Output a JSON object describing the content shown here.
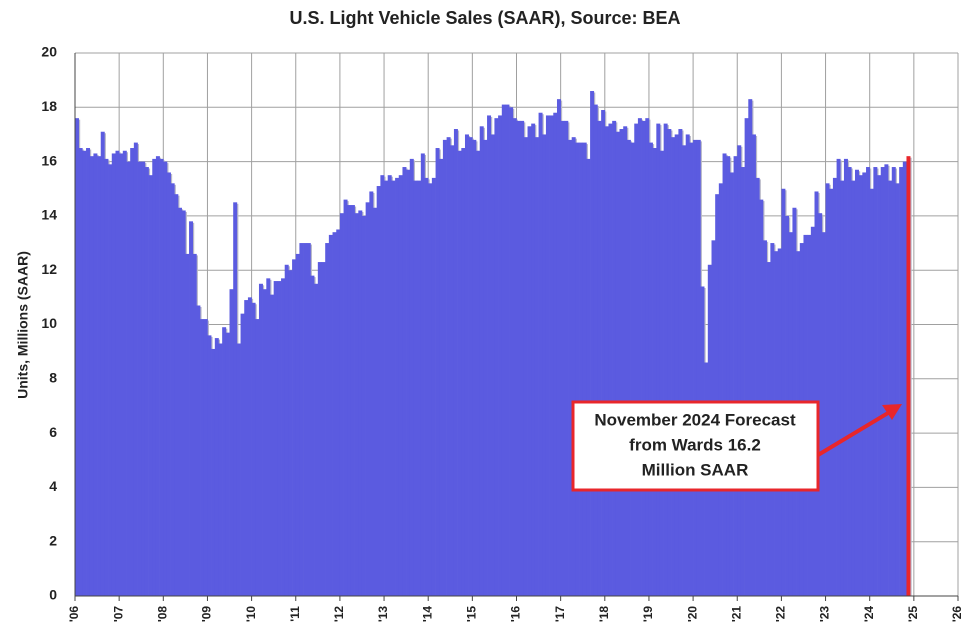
{
  "chart_data": {
    "type": "bar",
    "title": "U.S. Light Vehicle Sales (SAAR), Source: BEA",
    "ylabel": "Units, Millions (SAAR)",
    "color": "#5b5be0",
    "highlight": {
      "index": 226,
      "color": "#e8262b"
    },
    "grid": true,
    "xlim": [
      2006,
      2026
    ],
    "ylim": [
      0,
      20
    ],
    "yticks": [
      0,
      2,
      4,
      6,
      8,
      10,
      12,
      14,
      16,
      18,
      20
    ],
    "xticks": [
      {
        "value": 2006,
        "label": "'06"
      },
      {
        "value": 2007,
        "label": "'07"
      },
      {
        "value": 2008,
        "label": "'08"
      },
      {
        "value": 2009,
        "label": "'09"
      },
      {
        "value": 2010,
        "label": "'10"
      },
      {
        "value": 2011,
        "label": "'11"
      },
      {
        "value": 2012,
        "label": "'12"
      },
      {
        "value": 2013,
        "label": "'13"
      },
      {
        "value": 2014,
        "label": "'14"
      },
      {
        "value": 2015,
        "label": "'15"
      },
      {
        "value": 2016,
        "label": "'16"
      },
      {
        "value": 2017,
        "label": "'17"
      },
      {
        "value": 2018,
        "label": "'18"
      },
      {
        "value": 2019,
        "label": "'19"
      },
      {
        "value": 2020,
        "label": "'20"
      },
      {
        "value": 2021,
        "label": "'21"
      },
      {
        "value": 2022,
        "label": "'22"
      },
      {
        "value": 2023,
        "label": "'23"
      },
      {
        "value": 2024,
        "label": "'24"
      },
      {
        "value": 2025,
        "label": "'25"
      },
      {
        "value": 2026,
        "label": "'26"
      }
    ],
    "annotation": [
      "November 2024 Forecast",
      "from Wards 16.2",
      "Million SAAR"
    ],
    "x": [
      2006,
      2006.083,
      2006.167,
      2006.25,
      2006.333,
      2006.417,
      2006.5,
      2006.583,
      2006.667,
      2006.75,
      2006.833,
      2006.917,
      2007,
      2007.083,
      2007.167,
      2007.25,
      2007.333,
      2007.417,
      2007.5,
      2007.583,
      2007.667,
      2007.75,
      2007.833,
      2007.917,
      2008,
      2008.083,
      2008.167,
      2008.25,
      2008.333,
      2008.417,
      2008.5,
      2008.583,
      2008.667,
      2008.75,
      2008.833,
      2008.917,
      2009,
      2009.083,
      2009.167,
      2009.25,
      2009.333,
      2009.417,
      2009.5,
      2009.583,
      2009.667,
      2009.75,
      2009.833,
      2009.917,
      2010,
      2010.083,
      2010.167,
      2010.25,
      2010.333,
      2010.417,
      2010.5,
      2010.583,
      2010.667,
      2010.75,
      2010.833,
      2010.917,
      2011,
      2011.083,
      2011.167,
      2011.25,
      2011.333,
      2011.417,
      2011.5,
      2011.583,
      2011.667,
      2011.75,
      2011.833,
      2011.917,
      2012,
      2012.083,
      2012.167,
      2012.25,
      2012.333,
      2012.417,
      2012.5,
      2012.583,
      2012.667,
      2012.75,
      2012.833,
      2012.917,
      2013,
      2013.083,
      2013.167,
      2013.25,
      2013.333,
      2013.417,
      2013.5,
      2013.583,
      2013.667,
      2013.75,
      2013.833,
      2013.917,
      2014,
      2014.083,
      2014.167,
      2014.25,
      2014.333,
      2014.417,
      2014.5,
      2014.583,
      2014.667,
      2014.75,
      2014.833,
      2014.917,
      2015,
      2015.083,
      2015.167,
      2015.25,
      2015.333,
      2015.417,
      2015.5,
      2015.583,
      2015.667,
      2015.75,
      2015.833,
      2015.917,
      2016,
      2016.083,
      2016.167,
      2016.25,
      2016.333,
      2016.417,
      2016.5,
      2016.583,
      2016.667,
      2016.75,
      2016.833,
      2016.917,
      2017,
      2017.083,
      2017.167,
      2017.25,
      2017.333,
      2017.417,
      2017.5,
      2017.583,
      2017.667,
      2017.75,
      2017.833,
      2017.917,
      2018,
      2018.083,
      2018.167,
      2018.25,
      2018.333,
      2018.417,
      2018.5,
      2018.583,
      2018.667,
      2018.75,
      2018.833,
      2018.917,
      2019,
      2019.083,
      2019.167,
      2019.25,
      2019.333,
      2019.417,
      2019.5,
      2019.583,
      2019.667,
      2019.75,
      2019.833,
      2019.917,
      2020,
      2020.083,
      2020.167,
      2020.25,
      2020.333,
      2020.417,
      2020.5,
      2020.583,
      2020.667,
      2020.75,
      2020.833,
      2020.917,
      2021,
      2021.083,
      2021.167,
      2021.25,
      2021.333,
      2021.417,
      2021.5,
      2021.583,
      2021.667,
      2021.75,
      2021.833,
      2021.917,
      2022,
      2022.083,
      2022.167,
      2022.25,
      2022.333,
      2022.417,
      2022.5,
      2022.583,
      2022.667,
      2022.75,
      2022.833,
      2022.917,
      2023,
      2023.083,
      2023.167,
      2023.25,
      2023.333,
      2023.417,
      2023.5,
      2023.583,
      2023.667,
      2023.75,
      2023.833,
      2023.917,
      2024,
      2024.083,
      2024.167,
      2024.25,
      2024.333,
      2024.417,
      2024.5,
      2024.583,
      2024.667,
      2024.75,
      2024.833
    ],
    "values": [
      17.6,
      16.5,
      16.4,
      16.5,
      16.2,
      16.3,
      16.2,
      17.1,
      16.1,
      15.9,
      16.3,
      16.4,
      16.3,
      16.4,
      16.0,
      16.5,
      16.7,
      16.0,
      16.0,
      15.8,
      15.5,
      16.1,
      16.2,
      16.1,
      16.0,
      15.6,
      15.2,
      14.8,
      14.3,
      14.2,
      12.6,
      13.8,
      12.6,
      10.7,
      10.2,
      10.2,
      9.6,
      9.1,
      9.5,
      9.3,
      9.9,
      9.7,
      11.3,
      14.5,
      9.3,
      10.4,
      10.9,
      11.0,
      10.8,
      10.2,
      11.5,
      11.3,
      11.7,
      11.1,
      11.6,
      11.6,
      11.7,
      12.2,
      12.0,
      12.4,
      12.6,
      13.0,
      13.0,
      13.0,
      11.8,
      11.5,
      12.3,
      12.3,
      13.0,
      13.3,
      13.4,
      13.5,
      14.1,
      14.6,
      14.4,
      14.4,
      14.1,
      14.2,
      14.0,
      14.5,
      14.9,
      14.3,
      15.1,
      15.5,
      15.3,
      15.5,
      15.3,
      15.4,
      15.5,
      15.8,
      15.7,
      16.1,
      15.3,
      15.3,
      16.3,
      15.4,
      15.2,
      15.4,
      16.5,
      16.1,
      16.8,
      16.9,
      16.6,
      17.2,
      16.4,
      16.5,
      17.0,
      16.9,
      16.8,
      16.4,
      17.3,
      16.8,
      17.7,
      17.0,
      17.6,
      17.7,
      18.1,
      18.1,
      18.0,
      17.6,
      17.5,
      17.5,
      16.9,
      17.3,
      17.4,
      16.9,
      17.8,
      17.0,
      17.7,
      17.7,
      17.8,
      18.3,
      17.5,
      17.5,
      16.8,
      16.9,
      16.7,
      16.7,
      16.7,
      16.1,
      18.6,
      18.1,
      17.5,
      17.9,
      17.3,
      17.4,
      17.5,
      17.1,
      17.2,
      17.3,
      16.8,
      16.7,
      17.4,
      17.6,
      17.5,
      17.6,
      16.7,
      16.5,
      17.4,
      16.4,
      17.4,
      17.2,
      16.9,
      17.0,
      17.2,
      16.6,
      17.0,
      16.7,
      16.8,
      16.8,
      11.4,
      8.6,
      12.2,
      13.1,
      14.8,
      15.2,
      16.3,
      16.2,
      15.6,
      16.2,
      16.6,
      15.8,
      17.6,
      18.3,
      17.0,
      15.4,
      14.6,
      13.1,
      12.3,
      13.0,
      12.7,
      12.8,
      15.0,
      14.0,
      13.4,
      14.3,
      12.7,
      13.0,
      13.3,
      13.3,
      13.6,
      14.9,
      14.1,
      13.4,
      15.2,
      15.0,
      15.4,
      16.1,
      15.3,
      16.1,
      15.8,
      15.3,
      15.7,
      15.5,
      15.6,
      15.8,
      15.0,
      15.8,
      15.5,
      15.8,
      15.9,
      15.3,
      15.8,
      15.2,
      15.8,
      16.0,
      16.2
    ]
  }
}
